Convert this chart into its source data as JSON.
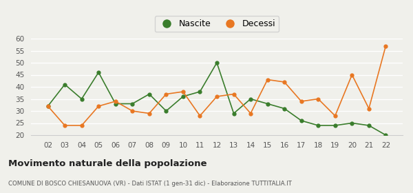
{
  "years": [
    "02",
    "03",
    "04",
    "05",
    "06",
    "07",
    "08",
    "09",
    "10",
    "11",
    "12",
    "13",
    "14",
    "15",
    "16",
    "17",
    "18",
    "19",
    "20",
    "21",
    "22"
  ],
  "nascite": [
    32,
    41,
    35,
    46,
    33,
    33,
    37,
    30,
    36,
    38,
    50,
    29,
    35,
    33,
    31,
    26,
    24,
    24,
    25,
    24,
    20
  ],
  "decessi": [
    32,
    24,
    24,
    32,
    34,
    30,
    29,
    37,
    38,
    28,
    36,
    37,
    29,
    43,
    42,
    34,
    35,
    28,
    45,
    31,
    57
  ],
  "nascite_color": "#3a7d2c",
  "decessi_color": "#e87722",
  "bg_color": "#f0f0eb",
  "grid_color": "#ffffff",
  "ylim": [
    20,
    60
  ],
  "yticks": [
    20,
    25,
    30,
    35,
    40,
    45,
    50,
    55,
    60
  ],
  "title": "Movimento naturale della popolazione",
  "subtitle": "COMUNE DI BOSCO CHIESANUOVA (VR) - Dati ISTAT (1 gen-31 dic) - Elaborazione TUTTITALIA.IT",
  "legend_nascite": "Nascite",
  "legend_decessi": "Decessi"
}
